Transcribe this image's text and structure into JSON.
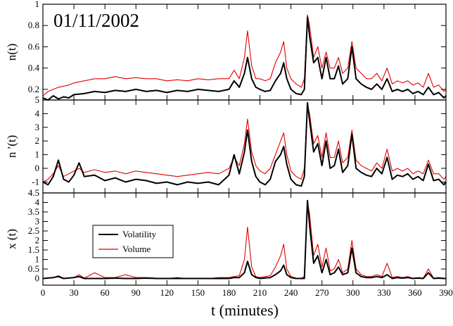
{
  "chart_data": [
    {
      "type": "line",
      "ylabel": "n(t)",
      "annotation": "01/11/2002",
      "xlim": [
        0,
        390
      ],
      "ylim": [
        0.1,
        1.0
      ],
      "yticks": [
        "0.2",
        "0.4",
        "0.6",
        "0.8",
        "1"
      ],
      "series": [
        {
          "name": "Volatility",
          "color": "#000000",
          "x": [
            0,
            5,
            10,
            15,
            20,
            25,
            30,
            40,
            50,
            60,
            70,
            80,
            90,
            100,
            110,
            120,
            130,
            140,
            150,
            160,
            170,
            180,
            185,
            190,
            195,
            198,
            202,
            206,
            210,
            215,
            220,
            225,
            230,
            233,
            236,
            240,
            245,
            250,
            253,
            256,
            258,
            262,
            266,
            270,
            274,
            278,
            282,
            286,
            290,
            295,
            299,
            303,
            308,
            313,
            318,
            323,
            328,
            333,
            338,
            343,
            348,
            353,
            358,
            363,
            368,
            373,
            378,
            383,
            388,
            390
          ],
          "values": [
            0.12,
            0.1,
            0.14,
            0.11,
            0.13,
            0.12,
            0.15,
            0.16,
            0.18,
            0.17,
            0.19,
            0.18,
            0.2,
            0.18,
            0.19,
            0.17,
            0.19,
            0.18,
            0.2,
            0.19,
            0.18,
            0.2,
            0.28,
            0.22,
            0.35,
            0.5,
            0.3,
            0.22,
            0.2,
            0.18,
            0.19,
            0.28,
            0.35,
            0.45,
            0.3,
            0.2,
            0.16,
            0.15,
            0.2,
            0.88,
            0.7,
            0.45,
            0.5,
            0.3,
            0.5,
            0.3,
            0.3,
            0.42,
            0.25,
            0.3,
            0.6,
            0.3,
            0.25,
            0.22,
            0.2,
            0.25,
            0.2,
            0.3,
            0.18,
            0.2,
            0.18,
            0.2,
            0.16,
            0.18,
            0.15,
            0.22,
            0.15,
            0.17,
            0.12,
            0.14
          ]
        },
        {
          "name": "Volume",
          "color": "#e00000",
          "x": [
            0,
            5,
            10,
            15,
            20,
            25,
            30,
            40,
            50,
            60,
            70,
            80,
            90,
            100,
            110,
            120,
            130,
            140,
            150,
            160,
            170,
            180,
            185,
            190,
            195,
            198,
            202,
            206,
            210,
            215,
            220,
            225,
            230,
            233,
            236,
            240,
            245,
            250,
            253,
            256,
            258,
            262,
            266,
            270,
            274,
            278,
            282,
            286,
            290,
            295,
            299,
            303,
            308,
            313,
            318,
            323,
            328,
            333,
            338,
            343,
            348,
            353,
            358,
            363,
            368,
            373,
            378,
            383,
            388,
            390
          ],
          "values": [
            0.14,
            0.18,
            0.2,
            0.22,
            0.23,
            0.24,
            0.26,
            0.28,
            0.3,
            0.3,
            0.32,
            0.3,
            0.31,
            0.3,
            0.3,
            0.28,
            0.29,
            0.28,
            0.3,
            0.29,
            0.3,
            0.3,
            0.38,
            0.3,
            0.5,
            0.75,
            0.42,
            0.3,
            0.3,
            0.28,
            0.3,
            0.45,
            0.55,
            0.65,
            0.4,
            0.3,
            0.25,
            0.22,
            0.3,
            0.9,
            0.8,
            0.5,
            0.6,
            0.4,
            0.55,
            0.4,
            0.4,
            0.5,
            0.35,
            0.4,
            0.65,
            0.4,
            0.35,
            0.3,
            0.3,
            0.35,
            0.28,
            0.4,
            0.25,
            0.28,
            0.26,
            0.28,
            0.24,
            0.26,
            0.22,
            0.35,
            0.22,
            0.24,
            0.18,
            0.2
          ]
        }
      ]
    },
    {
      "type": "line",
      "ylabel": "n ′(t)",
      "xlim": [
        0,
        390
      ],
      "ylim": [
        -1.8,
        5.0
      ],
      "yticks": [
        "-1",
        "0",
        "1",
        "2",
        "3",
        "4",
        "5"
      ],
      "series": [
        {
          "name": "Volatility",
          "color": "#000000",
          "x": [
            0,
            5,
            10,
            15,
            20,
            25,
            30,
            35,
            40,
            50,
            60,
            70,
            80,
            90,
            100,
            110,
            120,
            130,
            140,
            150,
            160,
            170,
            180,
            185,
            190,
            195,
            198,
            202,
            206,
            210,
            215,
            220,
            225,
            230,
            233,
            236,
            240,
            245,
            250,
            253,
            256,
            258,
            262,
            266,
            270,
            274,
            278,
            282,
            286,
            290,
            295,
            299,
            303,
            308,
            313,
            318,
            323,
            328,
            333,
            338,
            343,
            348,
            353,
            358,
            363,
            368,
            373,
            378,
            383,
            388,
            390
          ],
          "values": [
            -1.0,
            -1.2,
            -0.6,
            0.6,
            -0.8,
            -1.0,
            -0.5,
            0.4,
            -0.6,
            -0.5,
            -0.9,
            -0.7,
            -1.0,
            -0.8,
            -0.9,
            -1.1,
            -1.0,
            -1.2,
            -1.0,
            -1.1,
            -1.0,
            -1.2,
            -0.5,
            1.0,
            -0.4,
            1.2,
            2.8,
            0.5,
            -0.6,
            -1.0,
            -1.2,
            -0.8,
            0.5,
            1.0,
            1.6,
            0.3,
            -0.8,
            -1.2,
            -1.3,
            -0.6,
            4.8,
            3.5,
            1.2,
            1.8,
            0.2,
            2.0,
            0.0,
            0.2,
            1.4,
            -0.3,
            0.2,
            2.5,
            0.0,
            -0.3,
            -0.5,
            -0.6,
            0.0,
            -0.4,
            0.8,
            -0.8,
            -0.5,
            -0.6,
            -0.4,
            -0.8,
            -0.6,
            -0.9,
            0.3,
            -0.9,
            -0.8,
            -1.2,
            -1.0
          ]
        },
        {
          "name": "Volume",
          "color": "#e00000",
          "x": [
            0,
            5,
            10,
            15,
            20,
            25,
            30,
            35,
            40,
            50,
            60,
            70,
            80,
            90,
            100,
            110,
            120,
            130,
            140,
            150,
            160,
            170,
            180,
            185,
            190,
            195,
            198,
            202,
            206,
            210,
            215,
            220,
            225,
            230,
            233,
            236,
            240,
            245,
            250,
            253,
            256,
            258,
            262,
            266,
            270,
            274,
            278,
            282,
            286,
            290,
            295,
            299,
            303,
            308,
            313,
            318,
            323,
            328,
            333,
            338,
            343,
            348,
            353,
            358,
            363,
            368,
            373,
            378,
            383,
            388,
            390
          ],
          "values": [
            -1.0,
            -0.8,
            -0.4,
            0.2,
            -0.6,
            -0.4,
            -0.2,
            0.0,
            -0.3,
            -0.1,
            -0.3,
            -0.2,
            -0.4,
            -0.2,
            -0.3,
            -0.4,
            -0.5,
            -0.6,
            -0.5,
            -0.4,
            -0.3,
            -0.4,
            0.0,
            0.8,
            0.2,
            1.8,
            3.6,
            1.2,
            0.2,
            -0.2,
            -0.4,
            0.0,
            1.0,
            2.0,
            2.6,
            1.0,
            -0.2,
            -0.6,
            -0.8,
            0.0,
            4.6,
            4.0,
            1.8,
            2.4,
            0.8,
            2.6,
            0.8,
            0.8,
            2.0,
            0.4,
            0.8,
            2.8,
            0.6,
            0.2,
            0.0,
            -0.2,
            0.4,
            0.0,
            1.4,
            -0.2,
            0.0,
            -0.2,
            0.0,
            -0.4,
            -0.2,
            -0.4,
            0.6,
            -0.4,
            -0.4,
            -0.8,
            -0.6
          ]
        }
      ]
    },
    {
      "type": "line",
      "ylabel": "x (t)",
      "xlabel": "t (minutes)",
      "xlim": [
        0,
        390
      ],
      "ylim": [
        -0.35,
        4.5
      ],
      "yticks": [
        "0",
        "0.5",
        "1",
        "1.5",
        "2",
        "2.5",
        "3",
        "3.5",
        "4",
        "4.5"
      ],
      "xticks": [
        "0",
        "30",
        "60",
        "90",
        "120",
        "150",
        "180",
        "210",
        "240",
        "270",
        "300",
        "330",
        "360",
        "390"
      ],
      "legend_position": "middle-left",
      "series": [
        {
          "name": "Volatility",
          "color": "#000000",
          "x": [
            0,
            10,
            15,
            20,
            30,
            35,
            40,
            50,
            60,
            70,
            80,
            90,
            100,
            110,
            120,
            130,
            140,
            150,
            160,
            170,
            180,
            185,
            190,
            195,
            198,
            202,
            206,
            210,
            220,
            225,
            230,
            233,
            236,
            240,
            245,
            250,
            253,
            256,
            258,
            262,
            266,
            270,
            274,
            278,
            282,
            286,
            290,
            295,
            299,
            303,
            308,
            313,
            318,
            323,
            328,
            333,
            338,
            343,
            348,
            353,
            358,
            363,
            368,
            373,
            378,
            383,
            388,
            390
          ],
          "values": [
            0.0,
            0.05,
            0.1,
            0.0,
            0.05,
            0.1,
            0.0,
            0.0,
            0.0,
            0.02,
            0.0,
            0.0,
            0.02,
            0.0,
            0.0,
            0.0,
            0.0,
            0.0,
            0.0,
            0.0,
            0.0,
            0.05,
            0.05,
            0.3,
            0.9,
            0.2,
            0.05,
            0.0,
            0.05,
            0.2,
            0.4,
            0.7,
            0.2,
            0.05,
            0.0,
            0.0,
            0.0,
            4.1,
            2.8,
            0.8,
            1.2,
            0.3,
            1.0,
            0.2,
            0.3,
            0.6,
            0.2,
            0.3,
            1.6,
            0.3,
            0.1,
            0.05,
            0.05,
            0.1,
            0.05,
            0.2,
            0.0,
            0.05,
            0.02,
            0.05,
            0.0,
            0.02,
            0.0,
            0.3,
            0.0,
            0.02,
            0.0,
            0.0
          ]
        },
        {
          "name": "Volume",
          "color": "#e00000",
          "x": [
            0,
            10,
            15,
            20,
            30,
            35,
            40,
            50,
            60,
            70,
            80,
            90,
            100,
            110,
            120,
            130,
            140,
            150,
            160,
            170,
            180,
            185,
            190,
            195,
            198,
            202,
            206,
            210,
            220,
            225,
            230,
            233,
            236,
            240,
            245,
            250,
            253,
            256,
            258,
            262,
            266,
            270,
            274,
            278,
            282,
            286,
            290,
            295,
            299,
            303,
            308,
            313,
            318,
            323,
            328,
            333,
            338,
            343,
            348,
            353,
            358,
            363,
            368,
            373,
            378,
            383,
            388,
            390
          ],
          "values": [
            0.0,
            0.05,
            0.15,
            0.02,
            0.05,
            0.2,
            0.02,
            0.3,
            0.05,
            0.05,
            0.2,
            0.05,
            0.05,
            0.02,
            0.0,
            0.05,
            0.0,
            0.02,
            0.0,
            0.05,
            0.05,
            0.1,
            0.15,
            1.0,
            2.7,
            0.6,
            0.1,
            0.05,
            0.15,
            0.6,
            1.2,
            1.8,
            0.5,
            0.1,
            0.02,
            0.02,
            0.1,
            4.0,
            3.4,
            1.2,
            1.8,
            0.6,
            1.6,
            0.4,
            0.5,
            1.0,
            0.3,
            0.5,
            2.0,
            0.5,
            0.2,
            0.1,
            0.1,
            0.2,
            0.1,
            0.8,
            0.05,
            0.1,
            0.05,
            0.1,
            0.02,
            0.05,
            0.02,
            0.5,
            0.02,
            0.05,
            0.02,
            0.02
          ]
        }
      ]
    }
  ]
}
